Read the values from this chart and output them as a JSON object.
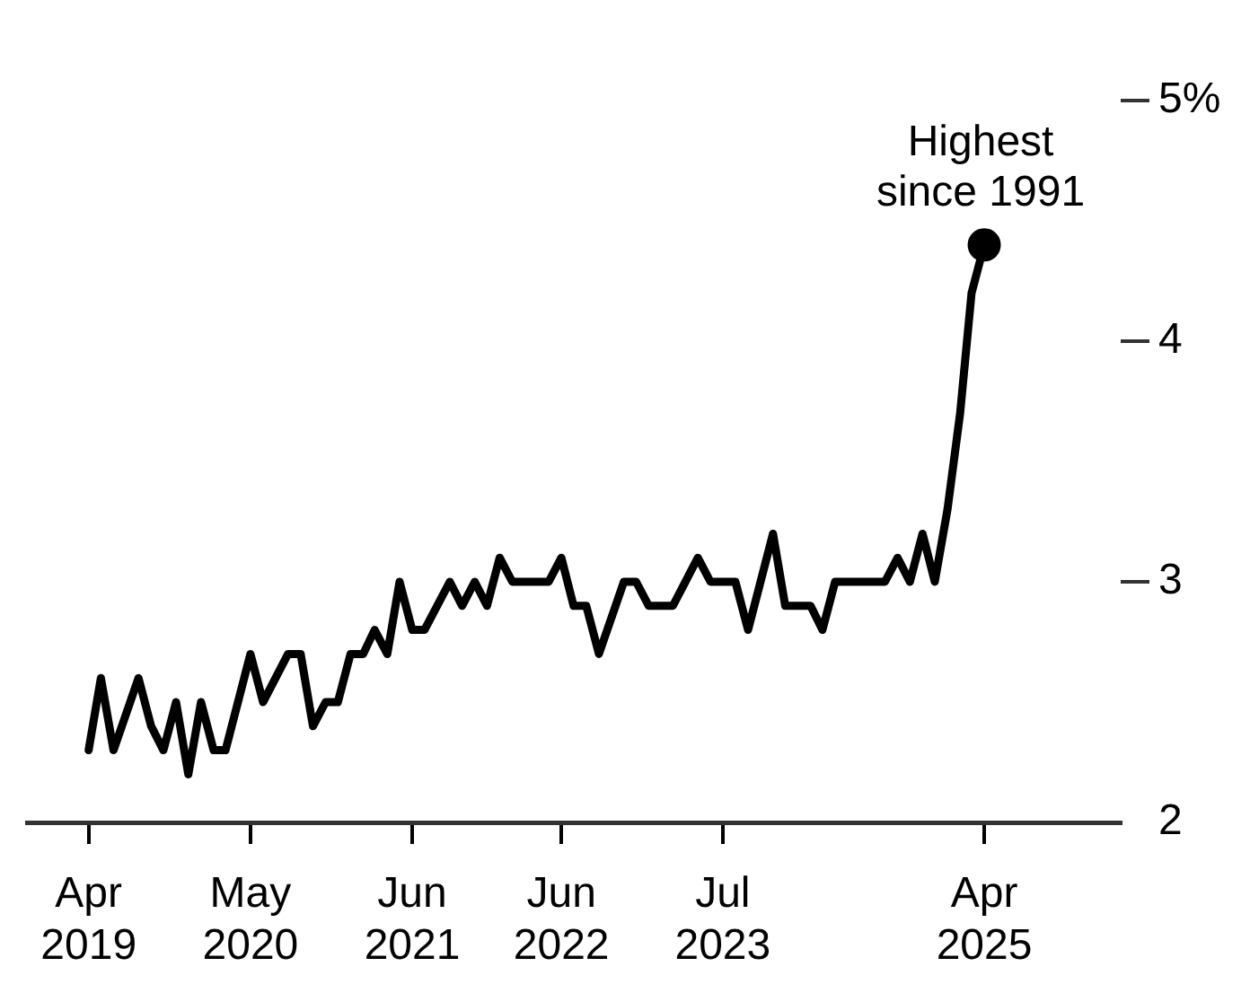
{
  "chart_data": {
    "type": "line",
    "x": [
      "2019-04",
      "2019-05",
      "2019-06",
      "2019-08",
      "2019-09",
      "2019-10",
      "2019-11",
      "2019-12",
      "2020-01",
      "2020-02",
      "2020-03",
      "2020-05",
      "2020-06",
      "2020-08",
      "2020-09",
      "2020-10",
      "2020-11",
      "2020-12",
      "2021-01",
      "2021-02",
      "2021-03",
      "2021-04",
      "2021-05",
      "2021-06",
      "2021-07",
      "2021-09",
      "2021-10",
      "2021-11",
      "2021-12",
      "2022-01",
      "2022-02",
      "2022-05",
      "2022-06",
      "2022-07",
      "2022-08",
      "2022-09",
      "2022-11",
      "2022-12",
      "2023-01",
      "2023-03",
      "2023-05",
      "2023-06",
      "2023-08",
      "2023-09",
      "2023-11",
      "2023-12",
      "2024-02",
      "2024-03",
      "2024-04",
      "2024-08",
      "2024-09",
      "2024-10",
      "2024-11",
      "2024-12",
      "2025-01",
      "2025-02",
      "2025-03",
      "2025-04"
    ],
    "series": [
      {
        "color": "#000000",
        "values": [
          2.3,
          2.6,
          2.3,
          2.6,
          2.4,
          2.3,
          2.5,
          2.2,
          2.5,
          2.3,
          2.3,
          2.7,
          2.5,
          2.7,
          2.7,
          2.4,
          2.5,
          2.5,
          2.7,
          2.7,
          2.8,
          2.7,
          3.0,
          2.8,
          2.8,
          3.0,
          2.9,
          3.0,
          2.9,
          3.1,
          3.0,
          3.0,
          3.1,
          2.9,
          2.9,
          2.7,
          3.0,
          3.0,
          2.9,
          2.9,
          3.1,
          3.0,
          3.0,
          2.8,
          3.2,
          2.9,
          2.9,
          2.8,
          3.0,
          3.0,
          3.1,
          3.0,
          3.2,
          3.0,
          3.3,
          3.7,
          4.2,
          4.4
        ]
      }
    ],
    "xlim": [
      "2018-11",
      "2026-03"
    ],
    "xticks": [
      {
        "value": "2019-04",
        "label": "Apr 2019"
      },
      {
        "value": "2020-05",
        "label": "May 2020"
      },
      {
        "value": "2021-06",
        "label": "Jun 2021"
      },
      {
        "value": "2022-06",
        "label": "Jun 2022"
      },
      {
        "value": "2023-07",
        "label": "Jul 2023"
      },
      {
        "value": "2025-04",
        "label": "Apr 2025"
      }
    ],
    "ylim": [
      2,
      5
    ],
    "yticks": [
      2,
      3,
      4,
      {
        "value": 5,
        "label": "5%"
      }
    ],
    "annotations": [
      {
        "text": "Highest since 1991",
        "x": "2025-04",
        "y": 4.4
      }
    ],
    "grid": false,
    "legend": false
  }
}
